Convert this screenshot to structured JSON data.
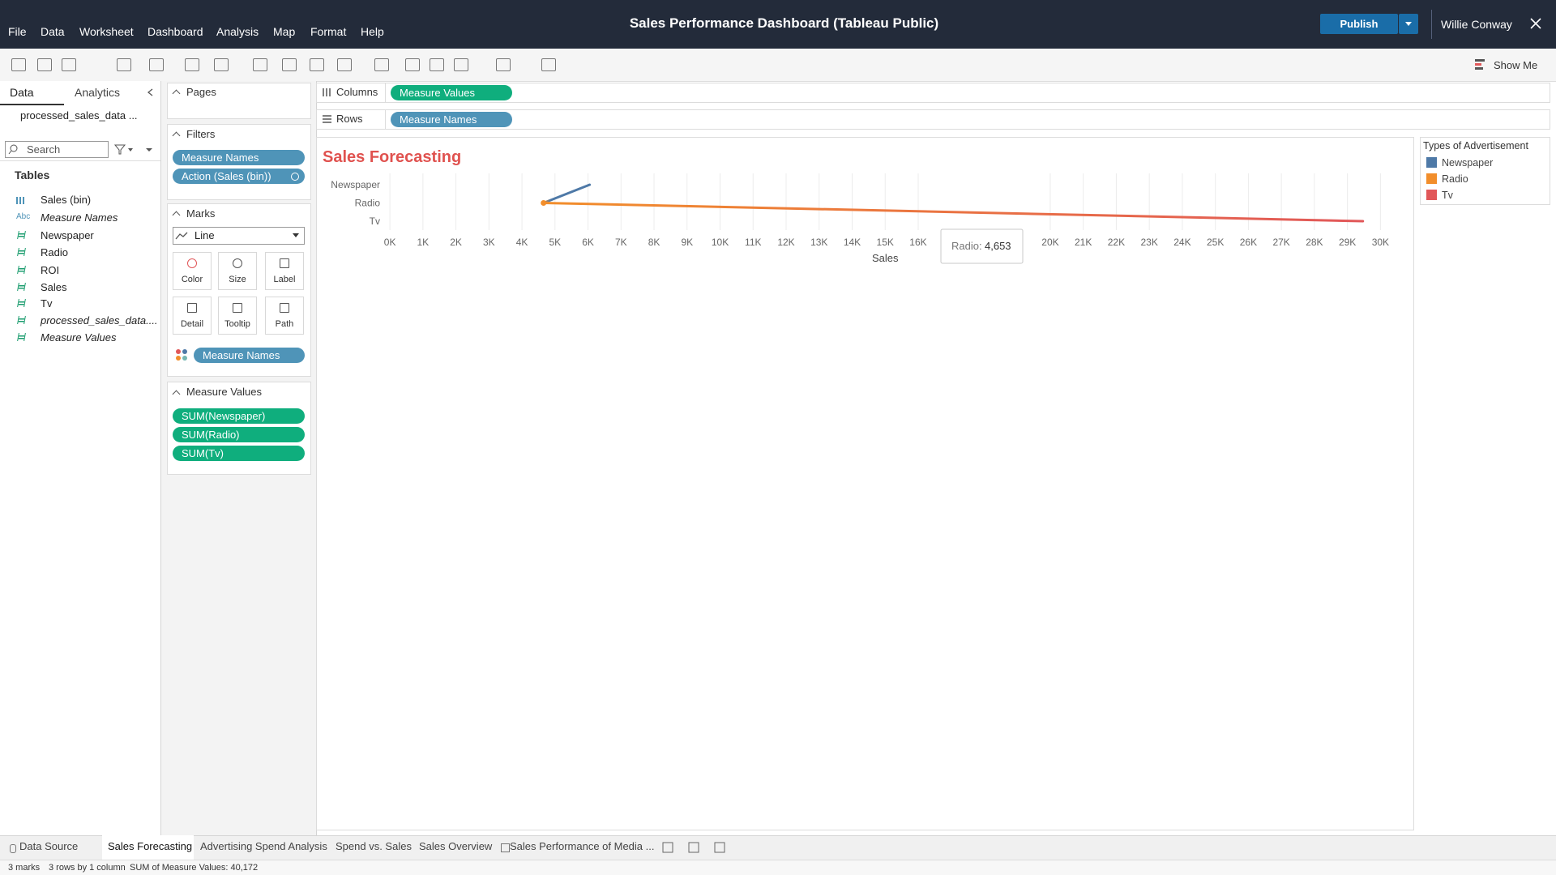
{
  "header": {
    "title": "Sales Performance Dashboard (Tableau Public)",
    "publish": "Publish",
    "user": "Willie Conway"
  },
  "menu": [
    "File",
    "Data",
    "Worksheet",
    "Dashboard",
    "Analysis",
    "Map",
    "Format",
    "Help"
  ],
  "toolbar": {
    "show_me": "Show Me"
  },
  "data_pane": {
    "tabs": [
      "Data",
      "Analytics"
    ],
    "datasource": "processed_sales_data ...",
    "search": "Search",
    "tables_label": "Tables",
    "fields": [
      {
        "name": "Sales (bin)",
        "kind": "bin"
      },
      {
        "icon": "Abc",
        "name": "Measure Names",
        "italic": true
      },
      {
        "name": "Newspaper"
      },
      {
        "name": "Radio"
      },
      {
        "name": "ROI"
      },
      {
        "name": "Sales"
      },
      {
        "name": "Tv"
      },
      {
        "name": "processed_sales_data....",
        "italic": true
      },
      {
        "name": "Measure Values",
        "italic": true
      }
    ]
  },
  "cards": {
    "pages": {
      "title": "Pages"
    },
    "filters": {
      "title": "Filters",
      "pills": [
        "Measure Names",
        "Action (Sales (bin))"
      ]
    },
    "marks": {
      "title": "Marks",
      "mark_type": "Line",
      "buttons": [
        "Color",
        "Size",
        "Label",
        "Detail",
        "Tooltip",
        "Path"
      ],
      "pill": "Measure Names"
    },
    "measure_values": {
      "title": "Measure Values",
      "pills": [
        "SUM(Newspaper)",
        "SUM(Radio)",
        "SUM(Tv)"
      ]
    }
  },
  "shelves": {
    "columns": {
      "label": "Columns",
      "pill": "Measure Values"
    },
    "rows": {
      "label": "Rows",
      "pill": "Measure Names"
    }
  },
  "chart_data": {
    "type": "line",
    "title": "Sales Forecasting",
    "x_label": "Sales",
    "categories": [
      "Newspaper",
      "Radio",
      "Tv"
    ],
    "values": [
      6050,
      4653,
      29469
    ],
    "colors": [
      "#4e79a7",
      "#f28e2b",
      "#e15759"
    ],
    "xlim": [
      -150,
      30850
    ],
    "xticks": [
      {
        "value": 0,
        "label": "0K"
      },
      {
        "value": 1000,
        "label": "1K"
      },
      {
        "value": 2000,
        "label": "2K"
      },
      {
        "value": 3000,
        "label": "3K"
      },
      {
        "value": 4000,
        "label": "4K"
      },
      {
        "value": 5000,
        "label": "5K"
      },
      {
        "value": 6000,
        "label": "6K"
      },
      {
        "value": 7000,
        "label": "7K"
      },
      {
        "value": 8000,
        "label": "8K"
      },
      {
        "value": 9000,
        "label": "9K"
      },
      {
        "value": 10000,
        "label": "10K"
      },
      {
        "value": 11000,
        "label": "11K"
      },
      {
        "value": 12000,
        "label": "12K"
      },
      {
        "value": 13000,
        "label": "13K"
      },
      {
        "value": 14000,
        "label": "14K"
      },
      {
        "value": 15000,
        "label": "15K"
      },
      {
        "value": 16000,
        "label": "16K"
      },
      {
        "value": 20000,
        "label": "20K"
      },
      {
        "value": 21000,
        "label": "21K"
      },
      {
        "value": 22000,
        "label": "22K"
      },
      {
        "value": 23000,
        "label": "23K"
      },
      {
        "value": 24000,
        "label": "24K"
      },
      {
        "value": 25000,
        "label": "25K"
      },
      {
        "value": 26000,
        "label": "26K"
      },
      {
        "value": 27000,
        "label": "27K"
      },
      {
        "value": 28000,
        "label": "28K"
      },
      {
        "value": 29000,
        "label": "29K"
      },
      {
        "value": 30000,
        "label": "30K"
      }
    ],
    "grid": true,
    "legend": {
      "title": "Types of Advertisement",
      "position": "right"
    },
    "tooltip": {
      "name": "Radio:",
      "value_label": "4,653"
    }
  },
  "tabs": [
    "Data Source",
    "Sales Forecasting",
    "Advertising Spend Analysis",
    "Spend vs. Sales",
    "Sales Overview",
    "Sales Performance of Media ..."
  ],
  "status": [
    "3 marks",
    "3 rows by 1 column",
    "SUM of Measure Values: 40,172"
  ]
}
